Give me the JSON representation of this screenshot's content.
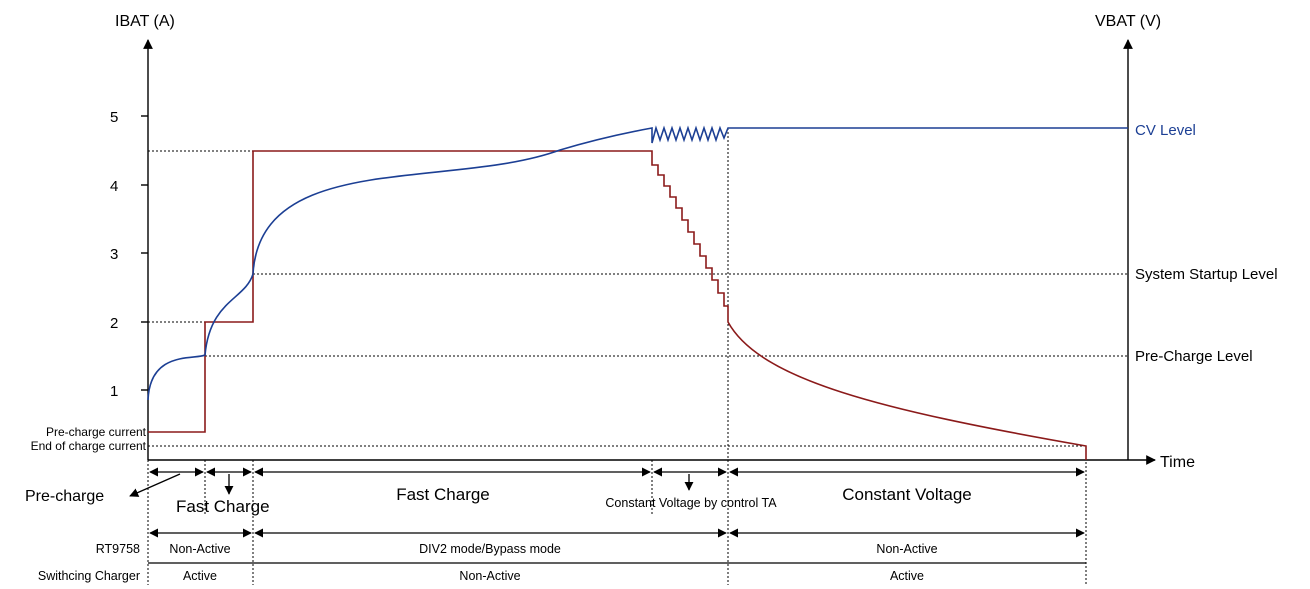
{
  "axes": {
    "left_label": "IBAT (A)",
    "right_label": "VBAT (V)",
    "time_label": "Time",
    "y_ticks": [
      "1",
      "2",
      "3",
      "4",
      "5"
    ]
  },
  "levels": {
    "cv": "CV Level",
    "system_startup": "System Startup Level",
    "pre_charge": "Pre-Charge Level",
    "pre_charge_current": "Pre-charge current",
    "end_of_charge_current": "End of charge current"
  },
  "phases": {
    "pre_charge": "Pre-charge",
    "fast_charge_1": "Fast Charge",
    "fast_charge_2": "Fast Charge",
    "cv_by_ta": "Constant Voltage by control TA",
    "constant_voltage": "Constant Voltage"
  },
  "rows": {
    "rt9758": {
      "label": "RT9758",
      "segments": [
        "Non-Active",
        "DIV2 mode/Bypass mode",
        "Non-Active"
      ]
    },
    "switching_charger": {
      "label": "Swithcing Charger",
      "segments": [
        "Active",
        "Non-Active",
        "Active"
      ]
    }
  },
  "colors": {
    "ibat": "#8b1a1a",
    "vbat": "#1c3f94",
    "cv_text": "#1c3f94"
  }
}
